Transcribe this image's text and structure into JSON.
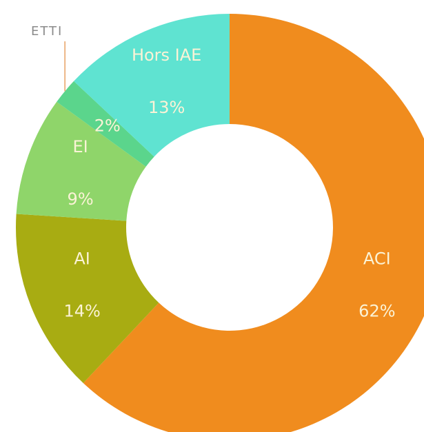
{
  "chart_data": {
    "type": "pie",
    "categories": [
      "ACI",
      "AI",
      "EI",
      "ETTI",
      "Hors IAE"
    ],
    "values": [
      62,
      14,
      9,
      2,
      13
    ],
    "value_labels": [
      "62%",
      "14%",
      "9%",
      "2%",
      "13%"
    ],
    "colors": [
      "#f08c1e",
      "#a8ac12",
      "#8fd56a",
      "#5bd58c",
      "#5fe3d1"
    ]
  }
}
